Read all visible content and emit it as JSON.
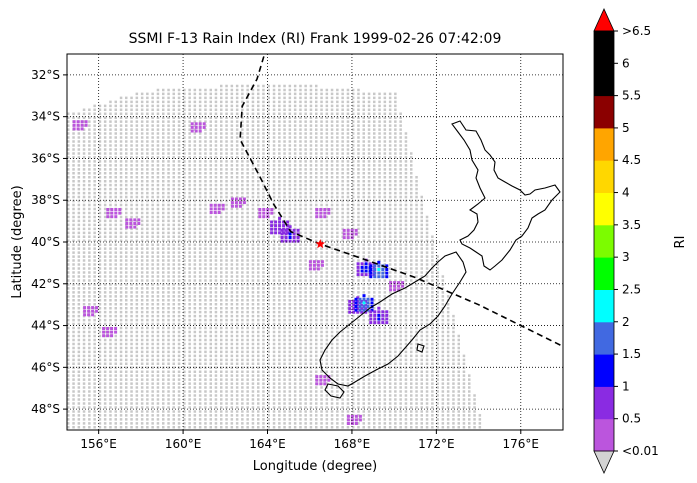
{
  "chart_data": {
    "type": "scatter",
    "title": "SSMI F-13 Rain Index (RI) Frank 1999-02-26 07:42:09",
    "xlabel": "Longitude (degree)",
    "ylabel": "Latitude (degree)",
    "xlim": [
      154.5,
      178.0
    ],
    "ylim": [
      -49.0,
      -31.0
    ],
    "xticks": [
      {
        "value": 156,
        "label": "156°E"
      },
      {
        "value": 160,
        "label": "160°E"
      },
      {
        "value": 164,
        "label": "164°E"
      },
      {
        "value": 168,
        "label": "168°E"
      },
      {
        "value": 172,
        "label": "172°E"
      },
      {
        "value": 176,
        "label": "176°E"
      }
    ],
    "yticks": [
      {
        "value": -32,
        "label": "32°S"
      },
      {
        "value": -34,
        "label": "34°S"
      },
      {
        "value": -36,
        "label": "36°S"
      },
      {
        "value": -38,
        "label": "38°S"
      },
      {
        "value": -40,
        "label": "40°S"
      },
      {
        "value": -42,
        "label": "42°S"
      },
      {
        "value": -44,
        "label": "44°S"
      },
      {
        "value": -46,
        "label": "46°S"
      },
      {
        "value": -48,
        "label": "48°S"
      }
    ],
    "grid": true,
    "swath": {
      "points": [
        [
          164.5,
          -32.3
        ],
        [
          170.0,
          -32.8
        ],
        [
          174.2,
          -49.0
        ],
        [
          154.5,
          -49.0
        ],
        [
          154.5,
          -33.8
        ],
        [
          158.0,
          -32.7
        ]
      ],
      "color": "#c8c8c8"
    },
    "storm_track": {
      "line_style": "dashed",
      "points": [
        [
          164.1,
          -30.2
        ],
        [
          163.5,
          -32.2
        ],
        [
          162.8,
          -33.5
        ],
        [
          162.7,
          -35.1
        ],
        [
          163.6,
          -36.8
        ],
        [
          164.3,
          -38.2
        ],
        [
          165.1,
          -39.5
        ],
        [
          166.5,
          -40.1
        ],
        [
          168.5,
          -40.8
        ],
        [
          171.0,
          -41.7
        ],
        [
          174.0,
          -43.0
        ],
        [
          178.0,
          -45.0
        ]
      ],
      "current_position": {
        "lon": 166.5,
        "lat": -40.1,
        "marker": "star",
        "color": "#ff0000"
      }
    },
    "rain_clusters": [
      {
        "lon": 156.6,
        "lat": -38.5,
        "value": 0.3
      },
      {
        "lon": 157.5,
        "lat": -39.0,
        "value": 0.3
      },
      {
        "lon": 155.0,
        "lat": -34.3,
        "value": 0.3
      },
      {
        "lon": 160.6,
        "lat": -34.4,
        "value": 0.3
      },
      {
        "lon": 161.5,
        "lat": -38.3,
        "value": 0.3
      },
      {
        "lon": 162.5,
        "lat": -38.0,
        "value": 0.3
      },
      {
        "lon": 163.8,
        "lat": -38.5,
        "value": 0.3
      },
      {
        "lon": 166.5,
        "lat": -38.5,
        "value": 0.3
      },
      {
        "lon": 166.2,
        "lat": -41.0,
        "value": 0.3
      },
      {
        "lon": 164.5,
        "lat": -39.2,
        "value": 1.0
      },
      {
        "lon": 165.0,
        "lat": -39.6,
        "value": 1.2
      },
      {
        "lon": 167.8,
        "lat": -39.5,
        "value": 0.3
      },
      {
        "lon": 168.6,
        "lat": -41.2,
        "value": 1.3
      },
      {
        "lon": 169.2,
        "lat": -41.3,
        "value": 2.2
      },
      {
        "lon": 168.2,
        "lat": -43.0,
        "value": 1.0
      },
      {
        "lon": 168.5,
        "lat": -42.9,
        "value": 2.2
      },
      {
        "lon": 169.2,
        "lat": -43.5,
        "value": 1.2
      },
      {
        "lon": 170.0,
        "lat": -42.0,
        "value": 0.3
      },
      {
        "lon": 155.5,
        "lat": -43.2,
        "value": 0.3
      },
      {
        "lon": 156.4,
        "lat": -44.2,
        "value": 0.3
      },
      {
        "lon": 166.5,
        "lat": -46.5,
        "value": 0.3
      },
      {
        "lon": 168.0,
        "lat": -48.4,
        "value": 0.3
      }
    ],
    "colorbar": {
      "label": "RI",
      "tick_labels": [
        ">6.5",
        "6",
        "5.5",
        "5",
        "4.5",
        "4",
        "3.5",
        "3",
        "2.5",
        "2",
        "1.5",
        "1",
        "0.5",
        "<0.01"
      ],
      "levels": [
        0.01,
        0.5,
        1,
        1.5,
        2,
        2.5,
        3,
        3.5,
        4,
        4.5,
        5,
        5.5,
        6,
        6.5
      ],
      "colors": [
        "#bb55dd",
        "#8a2be2",
        "#0000ff",
        "#4169e1",
        "#00ffff",
        "#00ff00",
        "#7cfc00",
        "#ffff00",
        "#ffd700",
        "#ffa500",
        "#8b0000",
        "#000000",
        "#000000"
      ],
      "over_color": "#ff0000",
      "under_color": "#d3d3d3"
    }
  }
}
